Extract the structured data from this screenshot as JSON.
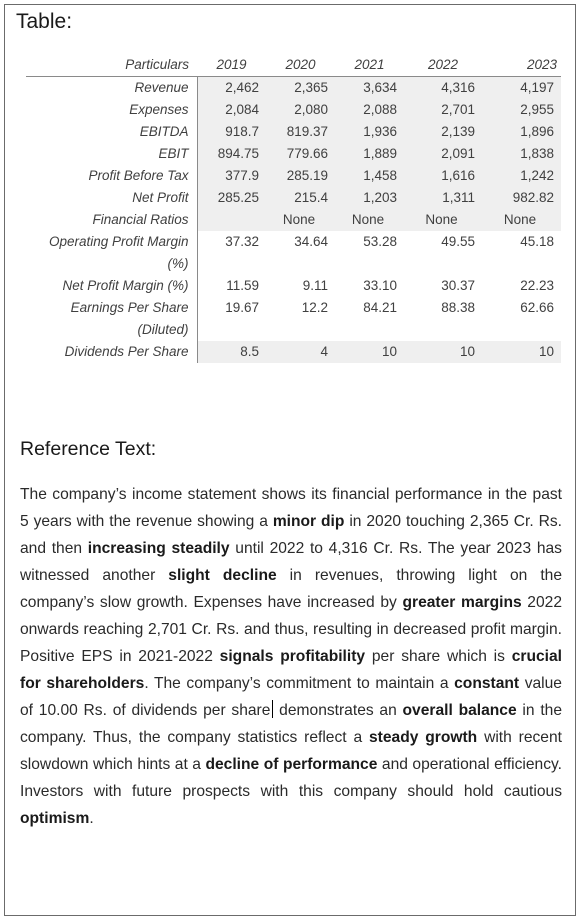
{
  "table_title": "Table:",
  "table": {
    "header": [
      "Particulars",
      "2019",
      "2020",
      "2021",
      "2022",
      "2023"
    ],
    "rows": [
      {
        "label": "Revenue",
        "values": [
          "2,462",
          "2,365",
          "3,634",
          "4,316",
          "4,197"
        ]
      },
      {
        "label": "Expenses",
        "values": [
          "2,084",
          "2,080",
          "2,088",
          "2,701",
          "2,955"
        ]
      },
      {
        "label": "EBITDA",
        "values": [
          "918.7",
          "819.37",
          "1,936",
          "2,139",
          "1,896"
        ]
      },
      {
        "label": "EBIT",
        "values": [
          "894.75",
          "779.66",
          "1,889",
          "2,091",
          "1,838"
        ]
      },
      {
        "label": "Profit Before Tax",
        "values": [
          "377.9",
          "285.19",
          "1,458",
          "1,616",
          "1,242"
        ]
      },
      {
        "label": "Net Profit",
        "values": [
          "285.25",
          "215.4",
          "1,203",
          "1,311",
          "982.82"
        ]
      },
      {
        "label": "Financial Ratios",
        "values": [
          "",
          "None",
          "None",
          "None",
          "None"
        ]
      },
      {
        "label": "Operating Profit Margin (%)",
        "values": [
          "37.32",
          "34.64",
          "53.28",
          "49.55",
          "45.18"
        ]
      },
      {
        "label": "Net Profit Margin (%)",
        "values": [
          "11.59",
          "9.11",
          "33.10",
          "30.37",
          "22.23"
        ]
      },
      {
        "label": "Earnings Per Share (Diluted)",
        "values": [
          "19.67",
          "12.2",
          "84.21",
          "88.38",
          "62.66"
        ]
      },
      {
        "label": "Dividends Per Share",
        "values": [
          "8.5",
          "4",
          "10",
          "10",
          "10"
        ]
      }
    ]
  },
  "reference": {
    "title": "Reference Text:",
    "segments": [
      {
        "t": "The company’s income statement shows its financial performance in the past 5 years with the revenue showing a ",
        "b": false
      },
      {
        "t": "minor dip",
        "b": true
      },
      {
        "t": " in 2020 touching 2,365 Cr. Rs. and then ",
        "b": false
      },
      {
        "t": "increasing steadily",
        "b": true
      },
      {
        "t": " until 2022 to 4,316 Cr. Rs. The year 2023 has witnessed another ",
        "b": false
      },
      {
        "t": "slight decline",
        "b": true
      },
      {
        "t": " in revenues, throwing light on the company’s slow growth. Expenses have increased by ",
        "b": false
      },
      {
        "t": "greater margins",
        "b": true
      },
      {
        "t": " 2022 onwards reaching 2,701 Cr. Rs. and thus, resulting in decreased profit margin. Positive EPS in 2021-2022 ",
        "b": false
      },
      {
        "t": "signals profitability",
        "b": true
      },
      {
        "t": " per share which is ",
        "b": false
      },
      {
        "t": "crucial for shareholders",
        "b": true
      },
      {
        "t": ". The company’s commitment to maintain a ",
        "b": false
      },
      {
        "t": "constant",
        "b": true
      },
      {
        "t": " value of 10.00 Rs. of dividends per share",
        "b": false
      },
      {
        "t": "",
        "b": false,
        "caret": true
      },
      {
        "t": " demonstrates an ",
        "b": false
      },
      {
        "t": "overall balance",
        "b": true
      },
      {
        "t": " in the company. Thus, the company statistics reflect a ",
        "b": false
      },
      {
        "t": "steady growth",
        "b": true
      },
      {
        "t": " with recent slowdown which hints at a ",
        "b": false
      },
      {
        "t": "decline of performance",
        "b": true
      },
      {
        "t": " and operational efficiency. Investors with future prospects with this company should hold cautious ",
        "b": false
      },
      {
        "t": "optimism",
        "b": true
      },
      {
        "t": ".",
        "b": false
      }
    ]
  }
}
